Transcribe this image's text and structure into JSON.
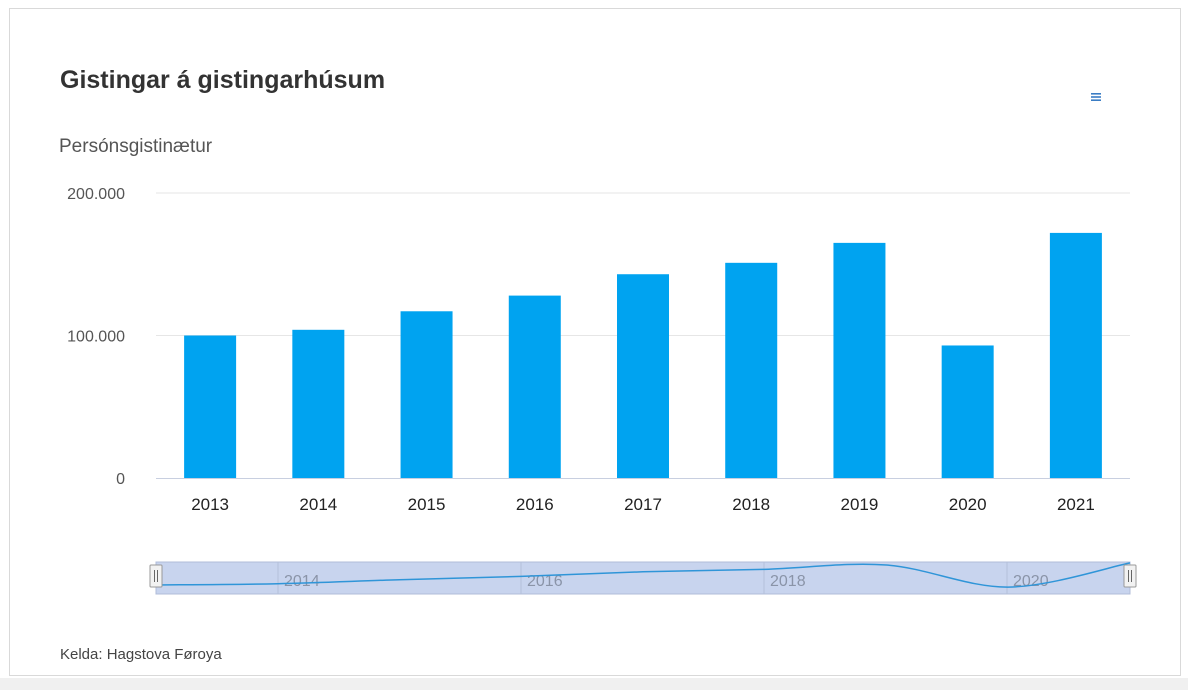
{
  "title": "Gistingar á gistingarhúsum",
  "source": "Kelda: Hagstova Føroya",
  "menu": {
    "icon": "hamburger-menu-icon",
    "color": "#3b7dc4"
  },
  "chart_data": {
    "type": "bar",
    "title": "Gistingar á gistingarhúsum",
    "xlabel": "",
    "ylabel": "Persónsgistinætur",
    "categories": [
      "2013",
      "2014",
      "2015",
      "2016",
      "2017",
      "2018",
      "2019",
      "2020",
      "2021"
    ],
    "values": [
      100000,
      104000,
      117000,
      128000,
      143000,
      151000,
      165000,
      93000,
      172000
    ],
    "ylim": [
      0,
      200000
    ],
    "yticks": [
      0,
      100000,
      200000
    ],
    "ytick_labels": [
      "0",
      "100.000",
      "200.000"
    ],
    "grid": true,
    "legend": "none",
    "bar_color": "#00a3f0",
    "navigator": {
      "labels": [
        "2014",
        "2016",
        "2018",
        "2020"
      ],
      "line_color": "#2f95d8",
      "fill_color": "#c8d4ee"
    }
  }
}
